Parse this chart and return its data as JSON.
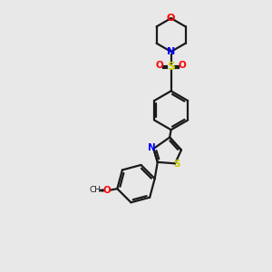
{
  "bg_color": "#e8e8e8",
  "bond_color": "#1a1a1a",
  "N_color": "#0000ff",
  "O_color": "#ff0000",
  "S_color": "#cccc00",
  "figsize": [
    3.0,
    3.0
  ],
  "dpi": 100,
  "xlim": [
    0,
    10
  ],
  "ylim": [
    0,
    10
  ]
}
